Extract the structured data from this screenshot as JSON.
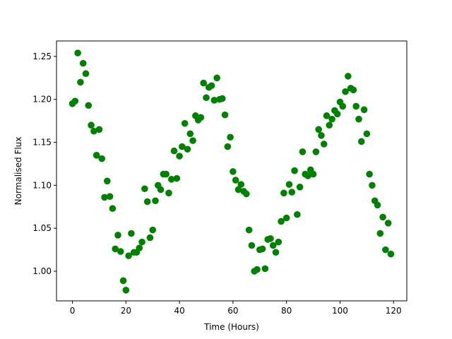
{
  "chart_data": {
    "type": "scatter",
    "x_label": "Time (Hours)",
    "y_label": "Normalised Flux",
    "color": "#008000",
    "grid": false,
    "xlim": [
      -5.95,
      124.95
    ],
    "xticks": [
      0,
      20,
      40,
      60,
      80,
      100,
      120
    ],
    "ylim": [
      0.9655,
      1.268
    ],
    "yticks": [
      {
        "value": 1.0,
        "label": "1.00"
      },
      1.05,
      {
        "value": 1.1,
        "label": "1.10"
      },
      1.15,
      {
        "value": 1.2,
        "label": "1.20"
      },
      1.25
    ],
    "x": [
      0,
      1,
      2,
      3,
      4,
      5,
      6,
      7,
      8,
      9,
      10,
      11,
      12,
      13,
      14,
      15,
      16,
      17,
      18,
      19,
      20,
      21,
      22,
      23,
      24,
      25,
      26,
      27,
      28,
      29,
      30,
      31,
      32,
      33,
      34,
      35,
      36,
      37,
      38,
      39,
      40,
      41,
      42,
      43,
      44,
      45,
      46,
      47,
      48,
      49,
      50,
      51,
      52,
      53,
      54,
      55,
      56,
      57,
      58,
      59,
      60,
      61,
      62,
      63,
      64,
      65,
      66,
      67,
      68,
      69,
      70,
      71,
      72,
      73,
      74,
      75,
      76,
      77,
      78,
      79,
      80,
      81,
      82,
      83,
      84,
      85,
      86,
      87,
      88,
      89,
      90,
      91,
      92,
      93,
      94,
      95,
      96,
      97,
      98,
      99,
      100,
      101,
      102,
      103,
      104,
      105,
      106,
      107,
      108,
      109,
      110,
      111,
      112,
      113,
      114,
      115,
      116,
      117,
      118,
      119
    ],
    "values": [
      1.195,
      1.198,
      1.254,
      1.22,
      1.242,
      1.23,
      1.193,
      1.17,
      1.163,
      1.135,
      1.165,
      1.131,
      1.086,
      1.105,
      1.087,
      1.073,
      1.026,
      1.042,
      1.023,
      0.989,
      0.978,
      1.018,
      1.044,
      1.022,
      1.022,
      1.027,
      1.034,
      1.096,
      1.081,
      1.039,
      1.048,
      1.082,
      1.1,
      1.095,
      1.113,
      1.113,
      1.091,
      1.107,
      1.14,
      1.108,
      1.134,
      1.145,
      1.172,
      1.142,
      1.16,
      1.152,
      1.181,
      1.176,
      1.179,
      1.219,
      1.202,
      1.214,
      1.216,
      1.199,
      1.225,
      1.2,
      1.201,
      1.182,
      1.145,
      1.156,
      1.116,
      1.106,
      1.095,
      1.101,
      1.093,
      1.09,
      1.048,
      1.03,
      1.0,
      1.002,
      1.025,
      1.026,
      1.003,
      1.037,
      1.038,
      1.03,
      1.022,
      1.034,
      1.058,
      1.091,
      1.062,
      1.101,
      1.092,
      1.117,
      1.066,
      1.098,
      1.139,
      1.113,
      1.111,
      1.118,
      1.113,
      1.139,
      1.165,
      1.158,
      1.148,
      1.181,
      1.17,
      1.177,
      1.187,
      1.183,
      1.197,
      1.192,
      1.209,
      1.227,
      1.213,
      1.211,
      1.192,
      1.177,
      1.151,
      1.188,
      1.16,
      1.113,
      1.1,
      1.082,
      1.077,
      1.044,
      1.063,
      1.025,
      1.056,
      1.02
    ]
  }
}
